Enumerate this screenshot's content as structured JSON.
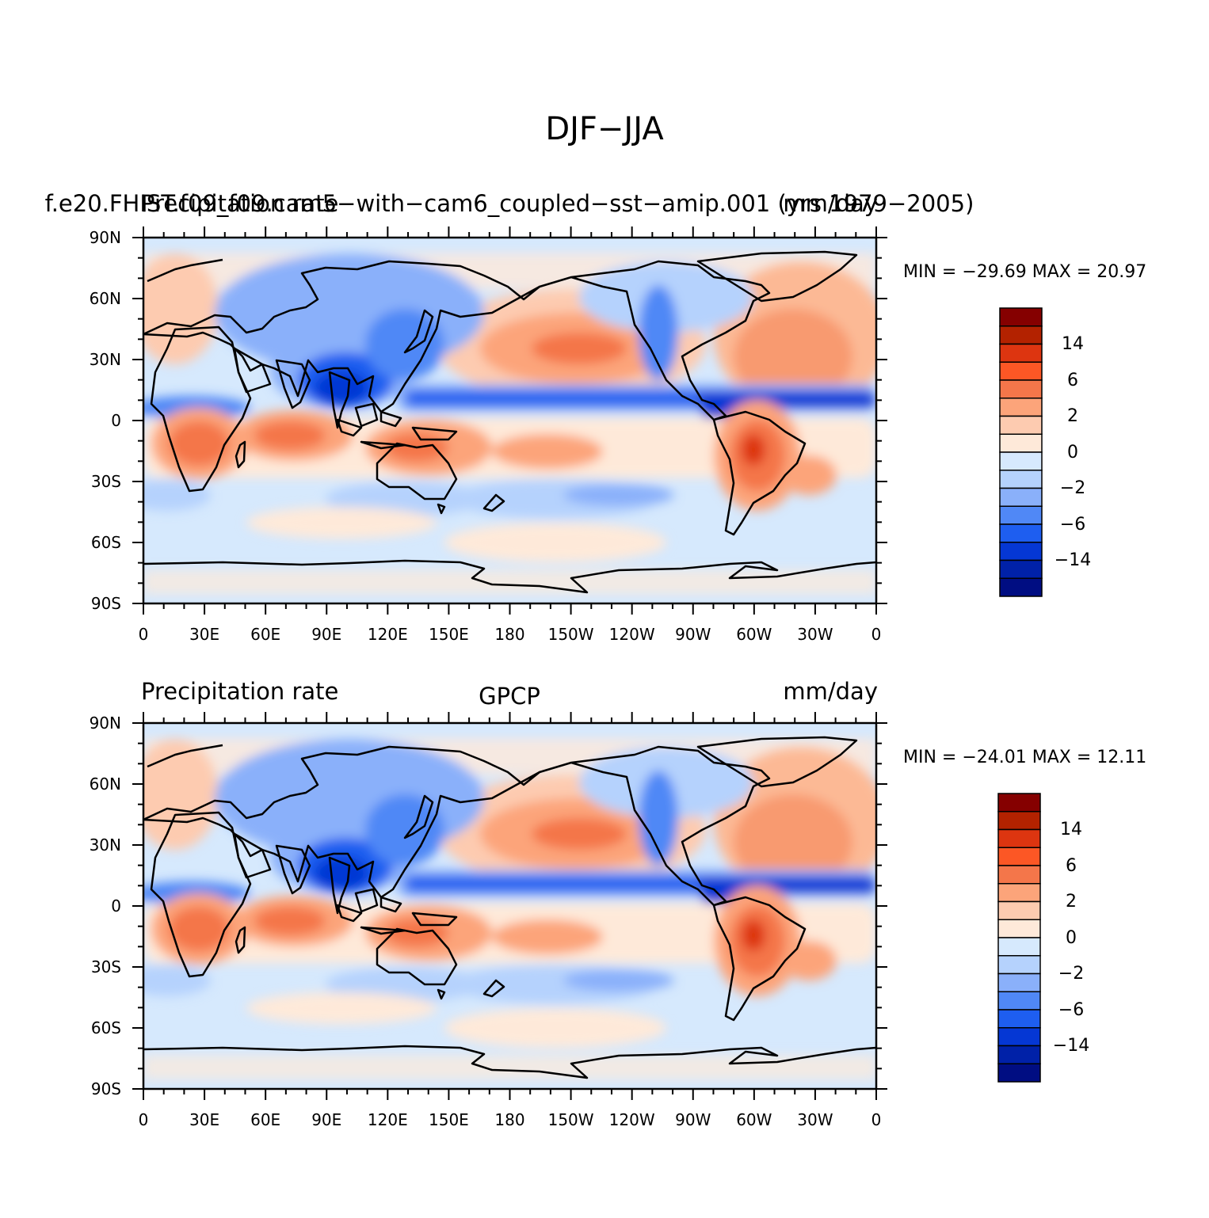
{
  "figure": {
    "title": "DJF−JJA"
  },
  "panels": [
    {
      "left_title": "Precipitation rate",
      "center_title": "f.e20.FHIST.f09_f09.cam5−with−cam6_coupled−sst−amip.001 (yrs 1979−2005)",
      "right_title": "mm/day",
      "stats": "MIN = −29.69  MAX =   20.97"
    },
    {
      "left_title": "Precipitation rate",
      "center_title": "GPCP",
      "right_title": "mm/day",
      "stats": "MIN = −24.01  MAX =   12.11"
    }
  ],
  "axes": {
    "lat_ticks": [
      "90N",
      "60N",
      "30N",
      "0",
      "30S",
      "60S",
      "90S"
    ],
    "lon_ticks": [
      "0",
      "30E",
      "60E",
      "90E",
      "120E",
      "150E",
      "180",
      "150W",
      "120W",
      "90W",
      "60W",
      "30W",
      "0"
    ]
  },
  "colorbar": {
    "label_values": [
      "14",
      "6",
      "2",
      "0",
      "−2",
      "−6",
      "−14"
    ],
    "colors": [
      "#850000",
      "#b32200",
      "#dd3510",
      "#fc5725",
      "#f4764a",
      "#fca47a",
      "#fdcbb0",
      "#fee9d9",
      "#d6e9fd",
      "#b5d2fd",
      "#8ab0fa",
      "#5088f6",
      "#1e5ef0",
      "#0537d4",
      "#0021a8",
      "#000d82"
    ]
  }
}
